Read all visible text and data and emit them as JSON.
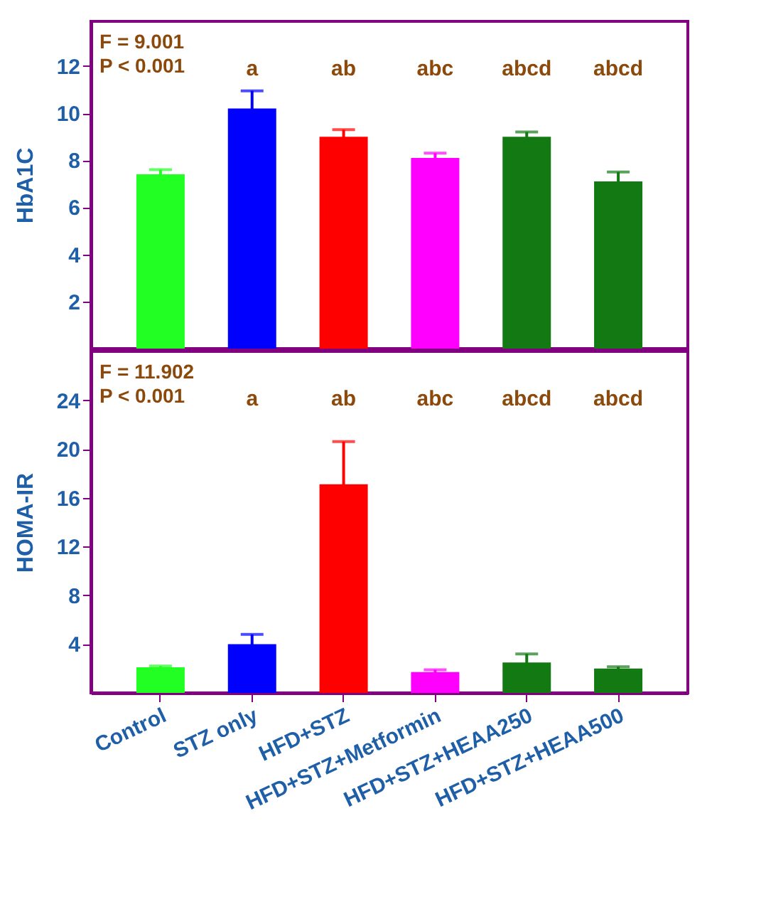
{
  "chart_data": [
    {
      "type": "bar",
      "ylabel": "HbA1C",
      "categories": [
        null,
        null,
        null,
        null,
        null,
        null
      ],
      "values": [
        7.4,
        10.2,
        9.0,
        8.1,
        9.0,
        7.1
      ],
      "errors": [
        0.2,
        0.75,
        0.3,
        0.2,
        0.2,
        0.4
      ],
      "colors": [
        "#22ff22",
        "#0000ff",
        "#ff0000",
        "#ff00ff",
        "#137a13",
        "#137a13"
      ],
      "ylim": [
        0,
        13.9
      ],
      "yticks": [
        2,
        4,
        6,
        8,
        10,
        12
      ],
      "tick_labels": "y",
      "grid": false,
      "legend": false,
      "annotations": [
        "F = 9.001",
        "P < 0.001",
        "a",
        "ab",
        "abc",
        "abcd",
        "abcd"
      ]
    },
    {
      "type": "bar",
      "ylabel": "HOMA-IR",
      "categories": [
        "Control",
        "STZ only",
        "HFD+STZ",
        "HFD+STZ+Metformin",
        "HFD+STZ+HEAA250",
        "HFD+STZ+HEAA500"
      ],
      "values": [
        2.1,
        4.0,
        17.1,
        1.7,
        2.5,
        2.0
      ],
      "errors": [
        0.1,
        0.8,
        3.5,
        0.2,
        0.7,
        0.15
      ],
      "colors": [
        "#22ff22",
        "#0000ff",
        "#ff0000",
        "#ff00ff",
        "#137a13",
        "#137a13"
      ],
      "ylim": [
        0,
        28
      ],
      "yticks": [
        4,
        8,
        12,
        16,
        20,
        24
      ],
      "grid": false,
      "legend": false,
      "annotations": [
        "F = 11.902",
        "P < 0.001",
        "a",
        "ab",
        "abc",
        "abcd",
        "abcd"
      ]
    }
  ]
}
